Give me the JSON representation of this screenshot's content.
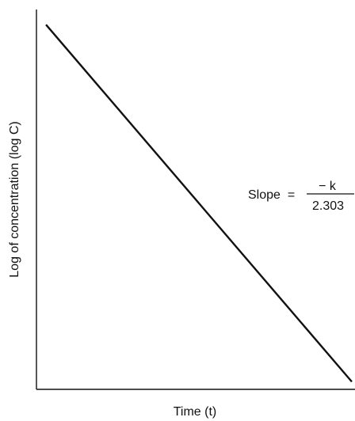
{
  "chart_data": {
    "type": "line",
    "title": "",
    "xlabel": "Time (t)",
    "ylabel": "Log of concentration (log C)",
    "grid": false,
    "legend": "none",
    "xlim": [
      0,
      1
    ],
    "ylim": [
      0,
      1
    ],
    "series": [
      {
        "x": [
          0.03,
          0.99
        ],
        "y": [
          0.96,
          0.02
        ]
      }
    ],
    "annotations": [
      {
        "prefix": "Slope  =",
        "numerator": "− k",
        "denominator": "2.303"
      }
    ]
  }
}
